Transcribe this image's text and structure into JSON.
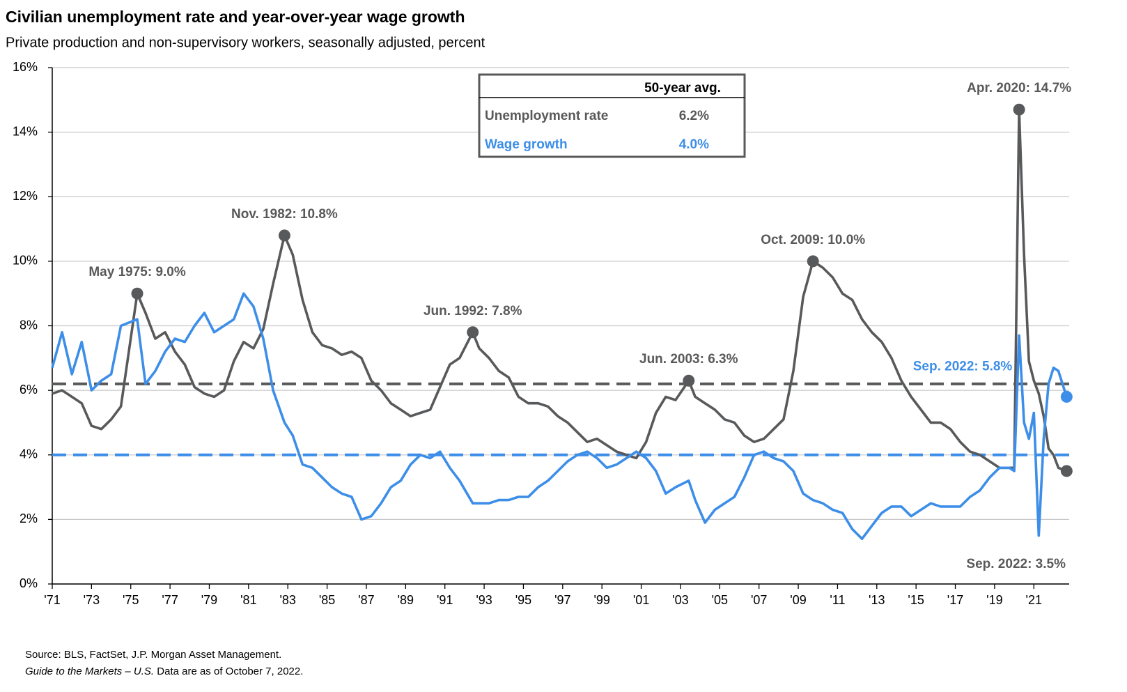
{
  "chart_data": {
    "type": "line",
    "title": "Civilian unemployment rate and year-over-year wage growth",
    "subtitle": "Private production and non-supervisory workers, seasonally adjusted, percent",
    "x": [
      1971,
      1971.5,
      1972,
      1972.5,
      1973,
      1973.5,
      1974,
      1974.5,
      1975.33,
      1975.75,
      1976.25,
      1976.75,
      1977.25,
      1977.75,
      1978.25,
      1978.75,
      1979.25,
      1979.75,
      1980.25,
      1980.75,
      1981.25,
      1981.75,
      1982.25,
      1982.83,
      1983.25,
      1983.75,
      1984.25,
      1984.75,
      1985.25,
      1985.75,
      1986.25,
      1986.75,
      1987.25,
      1987.75,
      1988.25,
      1988.75,
      1989.25,
      1989.75,
      1990.25,
      1990.75,
      1991.25,
      1991.75,
      1992.42,
      1992.75,
      1993.25,
      1993.75,
      1994.25,
      1994.75,
      1995.25,
      1995.75,
      1996.25,
      1996.75,
      1997.25,
      1997.75,
      1998.25,
      1998.75,
      1999.25,
      1999.75,
      2000.25,
      2000.75,
      2001.25,
      2001.75,
      2002.25,
      2002.75,
      2003.42,
      2003.75,
      2004.25,
      2004.75,
      2005.25,
      2005.75,
      2006.25,
      2006.75,
      2007.25,
      2007.75,
      2008.25,
      2008.75,
      2009.25,
      2009.75,
      2010.25,
      2010.75,
      2011.25,
      2011.75,
      2012.25,
      2012.75,
      2013.25,
      2013.75,
      2014.25,
      2014.75,
      2015.25,
      2015.75,
      2016.25,
      2016.75,
      2017.25,
      2017.75,
      2018.25,
      2018.75,
      2019.25,
      2019.75,
      2020.0,
      2020.25,
      2020.5,
      2020.75,
      2021.0,
      2021.25,
      2021.5,
      2021.75,
      2022.0,
      2022.25,
      2022.67
    ],
    "series": [
      {
        "name": "Unemployment rate",
        "color": "#58595b",
        "values": [
          5.9,
          6.0,
          5.8,
          5.6,
          4.9,
          4.8,
          5.1,
          5.5,
          9.0,
          8.4,
          7.6,
          7.8,
          7.2,
          6.8,
          6.1,
          5.9,
          5.8,
          6.0,
          6.9,
          7.5,
          7.3,
          7.9,
          9.3,
          10.8,
          10.2,
          8.8,
          7.8,
          7.4,
          7.3,
          7.1,
          7.2,
          7.0,
          6.3,
          6.0,
          5.6,
          5.4,
          5.2,
          5.3,
          5.4,
          6.1,
          6.8,
          7.0,
          7.8,
          7.3,
          7.0,
          6.6,
          6.4,
          5.8,
          5.6,
          5.6,
          5.5,
          5.2,
          5.0,
          4.7,
          4.4,
          4.5,
          4.3,
          4.1,
          4.0,
          3.9,
          4.4,
          5.3,
          5.8,
          5.7,
          6.3,
          5.8,
          5.6,
          5.4,
          5.1,
          5.0,
          4.6,
          4.4,
          4.5,
          4.8,
          5.1,
          6.6,
          8.9,
          10.0,
          9.8,
          9.5,
          9.0,
          8.8,
          8.2,
          7.8,
          7.5,
          7.0,
          6.3,
          5.8,
          5.4,
          5.0,
          5.0,
          4.8,
          4.4,
          4.1,
          4.0,
          3.8,
          3.6,
          3.6,
          3.6,
          14.7,
          10.2,
          6.9,
          6.3,
          5.9,
          5.2,
          4.2,
          4.0,
          3.6,
          3.5
        ]
      },
      {
        "name": "Wage growth",
        "color": "#3d8ee8",
        "values": [
          6.7,
          7.8,
          6.5,
          7.5,
          6.0,
          6.3,
          6.5,
          8.0,
          8.2,
          6.2,
          6.6,
          7.2,
          7.6,
          7.5,
          8.0,
          8.4,
          7.8,
          8.0,
          8.2,
          9.0,
          8.6,
          7.6,
          6.0,
          5.0,
          4.6,
          3.7,
          3.6,
          3.3,
          3.0,
          2.8,
          2.7,
          2.0,
          2.1,
          2.5,
          3.0,
          3.2,
          3.7,
          4.0,
          3.9,
          4.1,
          3.6,
          3.2,
          2.5,
          2.5,
          2.5,
          2.6,
          2.6,
          2.7,
          2.7,
          3.0,
          3.2,
          3.5,
          3.8,
          4.0,
          4.1,
          3.9,
          3.6,
          3.7,
          3.9,
          4.1,
          3.9,
          3.5,
          2.8,
          3.0,
          3.2,
          2.6,
          1.9,
          2.3,
          2.5,
          2.7,
          3.3,
          4.0,
          4.1,
          3.9,
          3.8,
          3.5,
          2.8,
          2.6,
          2.5,
          2.3,
          2.2,
          1.7,
          1.4,
          1.8,
          2.2,
          2.4,
          2.4,
          2.1,
          2.3,
          2.5,
          2.4,
          2.4,
          2.4,
          2.7,
          2.9,
          3.3,
          3.6,
          3.6,
          3.5,
          7.7,
          5.0,
          4.5,
          5.3,
          1.5,
          4.5,
          6.2,
          6.7,
          6.6,
          5.8
        ]
      }
    ],
    "averages": {
      "header": "50-year avg.",
      "rows": [
        {
          "name": "Unemployment rate",
          "value": 6.2,
          "label": "6.2%"
        },
        {
          "name": "Wage growth",
          "value": 4.0,
          "label": "4.0%"
        }
      ]
    },
    "annotations": [
      {
        "label": "May 1975: 9.0%",
        "x": 1975.33,
        "y": 9.0
      },
      {
        "label": "Nov. 1982: 10.8%",
        "x": 1982.83,
        "y": 10.8
      },
      {
        "label": "Jun. 1992: 7.8%",
        "x": 1992.42,
        "y": 7.8
      },
      {
        "label": "Jun. 2003: 6.3%",
        "x": 2003.42,
        "y": 6.3
      },
      {
        "label": "Oct. 2009: 10.0%",
        "x": 2009.75,
        "y": 10.0
      },
      {
        "label": "Apr. 2020: 14.7%",
        "x": 2020.25,
        "y": 14.7
      },
      {
        "label": "Sep. 2022: 5.8%",
        "x": 2022.67,
        "y": 5.8
      },
      {
        "label": "Sep. 2022: 3.5%",
        "x": 2022.67,
        "y": 3.5
      }
    ],
    "xlim": [
      1971,
      2022.8
    ],
    "xticks": [
      {
        "value": 1971,
        "label": "'71"
      },
      {
        "value": 1973,
        "label": "'73"
      },
      {
        "value": 1975,
        "label": "'75"
      },
      {
        "value": 1977,
        "label": "'77"
      },
      {
        "value": 1979,
        "label": "'79"
      },
      {
        "value": 1981,
        "label": "'81"
      },
      {
        "value": 1983,
        "label": "'83"
      },
      {
        "value": 1985,
        "label": "'85"
      },
      {
        "value": 1987,
        "label": "'87"
      },
      {
        "value": 1989,
        "label": "'89"
      },
      {
        "value": 1991,
        "label": "'91"
      },
      {
        "value": 1993,
        "label": "'93"
      },
      {
        "value": 1995,
        "label": "'95"
      },
      {
        "value": 1997,
        "label": "'97"
      },
      {
        "value": 1999,
        "label": "'99"
      },
      {
        "value": 2001,
        "label": "'01"
      },
      {
        "value": 2003,
        "label": "'03"
      },
      {
        "value": 2005,
        "label": "'05"
      },
      {
        "value": 2007,
        "label": "'07"
      },
      {
        "value": 2009,
        "label": "'09"
      },
      {
        "value": 2011,
        "label": "'11"
      },
      {
        "value": 2013,
        "label": "'13"
      },
      {
        "value": 2015,
        "label": "'15"
      },
      {
        "value": 2017,
        "label": "'17"
      },
      {
        "value": 2019,
        "label": "'19"
      },
      {
        "value": 2021,
        "label": "'21"
      }
    ],
    "ylim": [
      0,
      16
    ],
    "yticks": [
      {
        "value": 0,
        "label": "0%"
      },
      {
        "value": 2,
        "label": "2%"
      },
      {
        "value": 4,
        "label": "4%"
      },
      {
        "value": 6,
        "label": "6%"
      },
      {
        "value": 8,
        "label": "8%"
      },
      {
        "value": 10,
        "label": "10%"
      },
      {
        "value": 12,
        "label": "12%"
      },
      {
        "value": 14,
        "label": "14%"
      },
      {
        "value": 16,
        "label": "16%"
      }
    ],
    "grid": true,
    "source": "Source: BLS, FactSet, J.P. Morgan Asset Management.",
    "note_italic": "Guide to the Markets – U.S.",
    "note": "Data are as of October 7, 2022."
  }
}
